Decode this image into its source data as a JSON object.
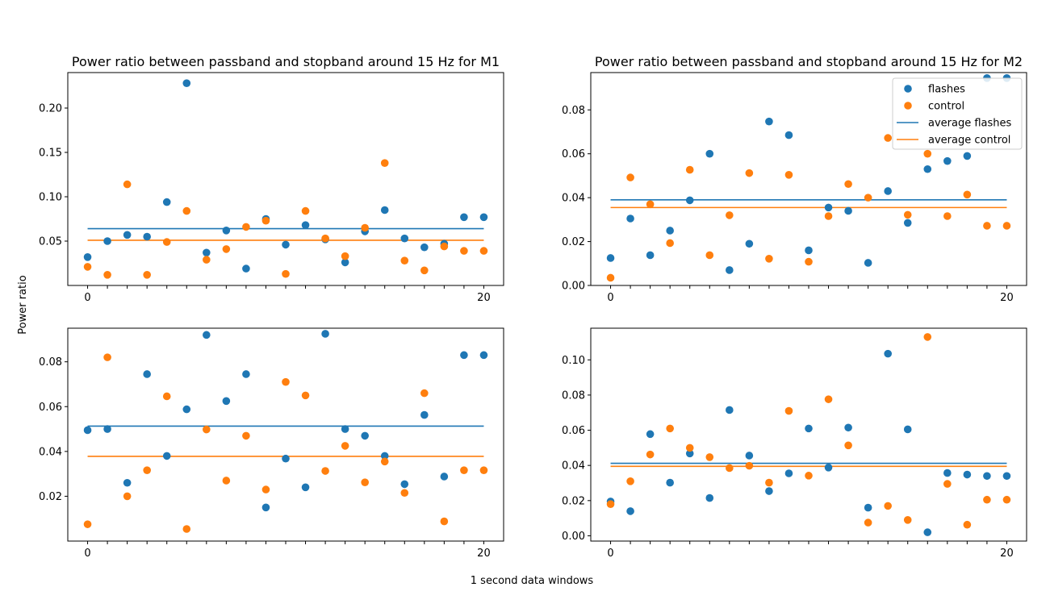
{
  "figure": {
    "xlabel": "1 second data windows",
    "ylabel": "Power ratio",
    "colors": {
      "flashes": "#1f77b4",
      "control": "#ff7f0e"
    }
  },
  "legend": {
    "entries": [
      "flashes",
      "control",
      "average flashes",
      "average control"
    ],
    "placement": "upper-right of top-right panel"
  },
  "chart_data": [
    {
      "type": "scatter",
      "title": "Power ratio between passband and stopband around 15 Hz for M1",
      "x": [
        0,
        1,
        2,
        3,
        4,
        5,
        6,
        7,
        8,
        9,
        10,
        11,
        12,
        13,
        14,
        15,
        16,
        17,
        18,
        19,
        20
      ],
      "xticks": [
        "0",
        "20"
      ],
      "ylim": [
        0.0,
        0.24
      ],
      "yticks": [
        0.05,
        0.1,
        0.15,
        0.2
      ],
      "ytick_labels": [
        "0.05",
        "0.10",
        "0.15",
        "0.20"
      ],
      "series": [
        {
          "name": "flashes",
          "values": [
            0.032,
            0.05,
            0.057,
            0.055,
            0.094,
            0.228,
            0.037,
            0.062,
            0.019,
            0.075,
            0.046,
            0.068,
            0.052,
            0.026,
            0.061,
            0.085,
            0.053,
            0.043,
            0.047,
            0.077,
            0.077
          ]
        },
        {
          "name": "control",
          "values": [
            0.021,
            0.012,
            0.114,
            0.012,
            0.049,
            0.084,
            0.029,
            0.041,
            0.066,
            0.073,
            0.013,
            0.084,
            0.053,
            0.033,
            0.065,
            0.138,
            0.028,
            0.017,
            0.044,
            0.039,
            0.039
          ]
        }
      ],
      "averages": {
        "average flashes": 0.064,
        "average control": 0.051
      }
    },
    {
      "type": "scatter",
      "title": "Power ratio between passband and stopband around 15 Hz for M2",
      "x": [
        0,
        1,
        2,
        3,
        4,
        5,
        6,
        7,
        8,
        9,
        10,
        11,
        12,
        13,
        14,
        15,
        16,
        17,
        18,
        19,
        20
      ],
      "xticks": [
        "0",
        "20"
      ],
      "ylim": [
        0.0,
        0.097
      ],
      "yticks": [
        0.0,
        0.02,
        0.04,
        0.06,
        0.08
      ],
      "ytick_labels": [
        "0.00",
        "0.02",
        "0.04",
        "0.06",
        "0.08"
      ],
      "series": [
        {
          "name": "flashes",
          "values": [
            0.0125,
            0.0305,
            0.0138,
            0.025,
            0.0388,
            0.06,
            0.007,
            0.019,
            0.0747,
            0.0685,
            0.016,
            0.0355,
            0.034,
            0.0103,
            0.043,
            0.0285,
            0.053,
            0.0567,
            0.059,
            0.0945,
            0.0945
          ]
        },
        {
          "name": "control",
          "values": [
            0.0035,
            0.0492,
            0.037,
            0.0193,
            0.0527,
            0.0138,
            0.032,
            0.0512,
            0.0122,
            0.0504,
            0.0108,
            0.0316,
            0.0462,
            0.04,
            0.0672,
            0.0322,
            0.06,
            0.0316,
            0.0414,
            0.0272,
            0.0272
          ]
        }
      ],
      "averages": {
        "average flashes": 0.039,
        "average control": 0.0355
      }
    },
    {
      "type": "scatter",
      "title": "",
      "x": [
        0,
        1,
        2,
        3,
        4,
        5,
        6,
        7,
        8,
        9,
        10,
        11,
        12,
        13,
        14,
        15,
        16,
        17,
        18,
        19,
        20
      ],
      "xticks": [
        "0",
        "20"
      ],
      "ylim": [
        0.0,
        0.095
      ],
      "yticks": [
        0.02,
        0.04,
        0.06,
        0.08
      ],
      "ytick_labels": [
        "0.02",
        "0.04",
        "0.06",
        "0.08"
      ],
      "series": [
        {
          "name": "flashes",
          "values": [
            0.0495,
            0.05,
            0.026,
            0.0745,
            0.038,
            0.0588,
            0.092,
            0.0625,
            0.0745,
            0.015,
            0.0368,
            0.024,
            0.0925,
            0.05,
            0.047,
            0.038,
            0.0254,
            0.0563,
            0.0288,
            0.083,
            0.083
          ]
        },
        {
          "name": "control",
          "values": [
            0.0075,
            0.082,
            0.02,
            0.0316,
            0.0646,
            0.0054,
            0.0498,
            0.027,
            0.047,
            0.023,
            0.071,
            0.065,
            0.0313,
            0.0425,
            0.0262,
            0.0355,
            0.0215,
            0.066,
            0.0088,
            0.0316,
            0.0316
          ]
        }
      ],
      "averages": {
        "average flashes": 0.0513,
        "average control": 0.0378
      }
    },
    {
      "type": "scatter",
      "title": "",
      "x": [
        0,
        1,
        2,
        3,
        4,
        5,
        6,
        7,
        8,
        9,
        10,
        11,
        12,
        13,
        14,
        15,
        16,
        17,
        18,
        19,
        20
      ],
      "xticks": [
        "0",
        "20"
      ],
      "ylim": [
        -0.003,
        0.118
      ],
      "yticks": [
        0.0,
        0.02,
        0.04,
        0.06,
        0.08,
        0.1
      ],
      "ytick_labels": [
        "0.00",
        "0.02",
        "0.04",
        "0.06",
        "0.08",
        "0.10"
      ],
      "series": [
        {
          "name": "flashes",
          "values": [
            0.0195,
            0.014,
            0.0578,
            0.0302,
            0.0468,
            0.0215,
            0.0715,
            0.0456,
            0.0254,
            0.0355,
            0.061,
            0.0388,
            0.0615,
            0.016,
            0.1035,
            0.0605,
            0.002,
            0.0357,
            0.0348,
            0.034,
            0.034
          ]
        },
        {
          "name": "control",
          "values": [
            0.018,
            0.031,
            0.0462,
            0.061,
            0.05,
            0.0447,
            0.0385,
            0.0398,
            0.0302,
            0.071,
            0.0342,
            0.0776,
            0.0514,
            0.0075,
            0.017,
            0.009,
            0.113,
            0.0295,
            0.0063,
            0.0205,
            0.0205
          ]
        }
      ],
      "averages": {
        "average flashes": 0.0412,
        "average control": 0.0395
      }
    }
  ]
}
